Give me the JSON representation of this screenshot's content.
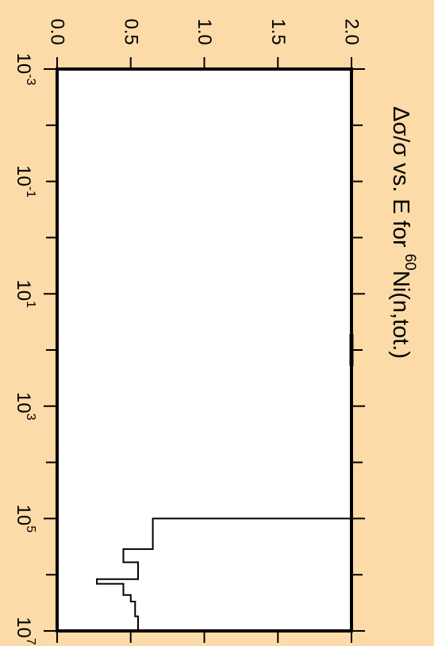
{
  "background_color": "#fcdba8",
  "chart_data": {
    "type": "line",
    "style": "step",
    "orientation": "rotated-90-clockwise",
    "title": {
      "prefix": "Δσ/σ vs. E for ",
      "mass_number": "60",
      "suffix": "Ni(n,tot.)"
    },
    "xlabel": "",
    "ylabel": "",
    "x_scale": "log",
    "xlim": [
      0.001,
      10000000
    ],
    "ylim": [
      0.0,
      2.0
    ],
    "grid": false,
    "x_ticks": [
      {
        "base": "10",
        "exp": "-3",
        "value": 0.001
      },
      {
        "base": "10",
        "exp": "-1",
        "value": 0.1
      },
      {
        "base": "10",
        "exp": "1",
        "value": 10
      },
      {
        "base": "10",
        "exp": "3",
        "value": 1000
      },
      {
        "base": "10",
        "exp": "5",
        "value": 100000
      },
      {
        "base": "10",
        "exp": "7",
        "value": 10000000
      }
    ],
    "y_ticks": [
      "0.0",
      "0.5",
      "1.0",
      "1.5",
      "2.0"
    ],
    "series": [
      {
        "color": "#000000",
        "x": [
          100000,
          100000,
          350000,
          350000,
          600000,
          600000,
          1200000,
          1200000,
          1450000,
          1450000,
          2300000,
          2300000,
          3000000,
          3000000,
          5500000,
          5500000,
          10000000
        ],
        "y": [
          2.0,
          0.65,
          0.65,
          0.45,
          0.45,
          0.55,
          0.55,
          0.27,
          0.27,
          0.45,
          0.45,
          0.5,
          0.5,
          0.53,
          0.53,
          0.55,
          0.55
        ]
      }
    ]
  }
}
